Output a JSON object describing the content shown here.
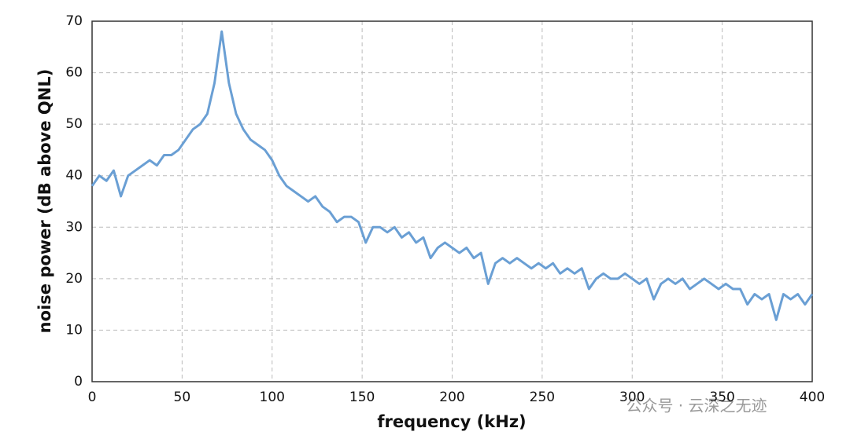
{
  "chart_data": {
    "type": "line",
    "x_label": "frequency (kHz)",
    "y_label": "noise power (dB above QNL)",
    "watermark": "公众号 · 云深之无迹",
    "x": [
      0,
      4,
      8,
      12,
      16,
      20,
      24,
      28,
      32,
      36,
      40,
      44,
      48,
      52,
      56,
      60,
      64,
      68,
      72,
      76,
      80,
      84,
      88,
      92,
      96,
      100,
      104,
      108,
      112,
      116,
      120,
      124,
      128,
      132,
      136,
      140,
      144,
      148,
      152,
      156,
      160,
      164,
      168,
      172,
      176,
      180,
      184,
      188,
      192,
      196,
      200,
      204,
      208,
      212,
      216,
      220,
      224,
      228,
      232,
      236,
      240,
      244,
      248,
      252,
      256,
      260,
      264,
      268,
      272,
      276,
      280,
      284,
      288,
      292,
      296,
      300,
      304,
      308,
      312,
      316,
      320,
      324,
      328,
      332,
      336,
      340,
      344,
      348,
      352,
      356,
      360,
      364,
      368,
      372,
      376,
      380,
      384,
      388,
      392,
      396,
      400
    ],
    "series": [
      {
        "name": "noise power",
        "color": "#6a9fd4",
        "values": [
          38,
          40,
          39,
          41,
          36,
          40,
          41,
          42,
          43,
          42,
          44,
          44,
          45,
          47,
          49,
          50,
          52,
          58,
          68,
          58,
          52,
          49,
          47,
          46,
          45,
          43,
          40,
          38,
          37,
          36,
          35,
          36,
          34,
          33,
          31,
          32,
          32,
          31,
          27,
          30,
          30,
          29,
          30,
          28,
          29,
          27,
          28,
          24,
          26,
          27,
          26,
          25,
          26,
          24,
          25,
          19,
          23,
          24,
          23,
          24,
          23,
          22,
          23,
          22,
          23,
          21,
          22,
          21,
          22,
          18,
          20,
          21,
          20,
          20,
          21,
          20,
          19,
          20,
          16,
          19,
          20,
          19,
          20,
          18,
          19,
          20,
          19,
          18,
          19,
          18,
          18,
          15,
          17,
          16,
          17,
          12,
          17,
          16,
          17,
          15,
          17
        ]
      }
    ],
    "xlim": [
      0,
      400
    ],
    "xticks": [
      0,
      50,
      100,
      150,
      200,
      250,
      300,
      350,
      400
    ],
    "ylim": [
      0,
      70
    ],
    "yticks": [
      0,
      10,
      20,
      30,
      40,
      50,
      60,
      70
    ],
    "grid": true
  }
}
